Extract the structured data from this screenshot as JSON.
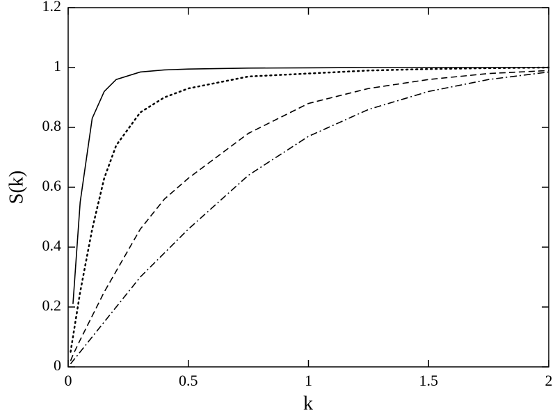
{
  "chart_data": {
    "type": "line",
    "xlabel": "k",
    "ylabel": "S(k)",
    "x": [
      0.01,
      0.02,
      0.05,
      0.1,
      0.15,
      0.2,
      0.3,
      0.4,
      0.5,
      0.75,
      1,
      1.25,
      1.5,
      1.75,
      2
    ],
    "series": [
      {
        "color": "#000000",
        "dash": "solid",
        "values": [
          null,
          0.21,
          0.55,
          0.83,
          0.92,
          0.96,
          0.985,
          0.992,
          0.995,
          0.998,
          0.999,
          1,
          1,
          1,
          1
        ]
      },
      {
        "color": "#000000",
        "dash": "dotted",
        "values": [
          0.05,
          0.1,
          0.25,
          0.46,
          0.63,
          0.74,
          0.85,
          0.9,
          0.93,
          0.97,
          0.98,
          0.99,
          0.995,
          0.998,
          1
        ]
      },
      {
        "color": "#000000",
        "dash": "dashed",
        "values": [
          0.02,
          0.04,
          0.09,
          0.17,
          0.25,
          0.32,
          0.46,
          0.56,
          0.63,
          0.78,
          0.88,
          0.93,
          0.96,
          0.98,
          0.99
        ]
      },
      {
        "color": "#000000",
        "dash": "dashdot",
        "values": [
          0.01,
          0.02,
          0.05,
          0.1,
          0.15,
          0.2,
          0.3,
          0.38,
          0.46,
          0.64,
          0.77,
          0.86,
          0.92,
          0.96,
          0.985
        ]
      }
    ],
    "xlim": [
      0,
      2
    ],
    "xticks": [
      0,
      0.5,
      1,
      1.5,
      2
    ],
    "ylim": [
      0,
      1.2
    ],
    "yticks": [
      0,
      0.2,
      0.4,
      0.6,
      0.8,
      1,
      1.2
    ],
    "grid": false
  }
}
